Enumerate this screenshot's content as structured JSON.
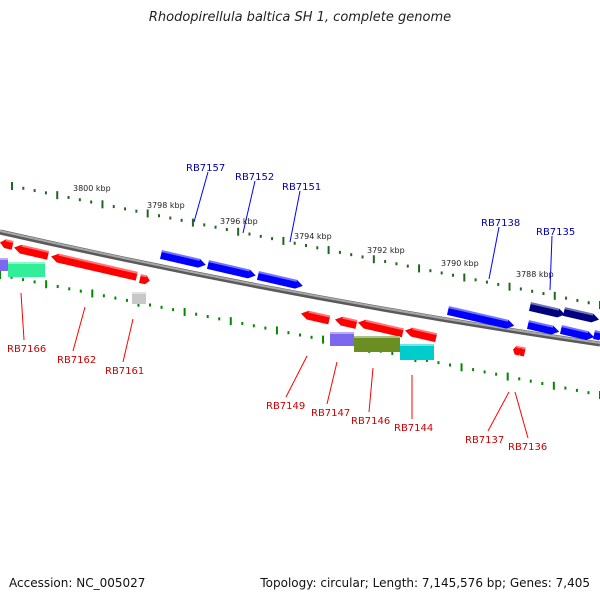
{
  "title": "Rhodopirellula baltica SH 1, complete genome",
  "accession": "Accession: NC_005027",
  "topology": "Topology: circular; Length: 7,145,576 bp; Genes: 7,405",
  "colors": {
    "forward_gene": "#0000ff",
    "reverse_gene": "#ff0000",
    "top_scale_ticks": "#226622",
    "bottom_scale_ticks": "#008800",
    "forward_label": "#0000aa",
    "reverse_label": "#cc0000",
    "backbone": "#808080"
  },
  "scale_labels": [
    "3800 kbp",
    "3798 kbp",
    "3796 kbp",
    "3794 kbp",
    "3792 kbp",
    "3790 kbp",
    "3788 kbp"
  ],
  "forward_labels": [
    "RB7157",
    "RB7152",
    "RB7151",
    "RB7138",
    "RB7135"
  ],
  "reverse_labels": [
    "RB7166",
    "RB7162",
    "RB7161",
    "RB7149",
    "RB7147",
    "RB7146",
    "RB7144",
    "RB7137",
    "RB7136"
  ]
}
